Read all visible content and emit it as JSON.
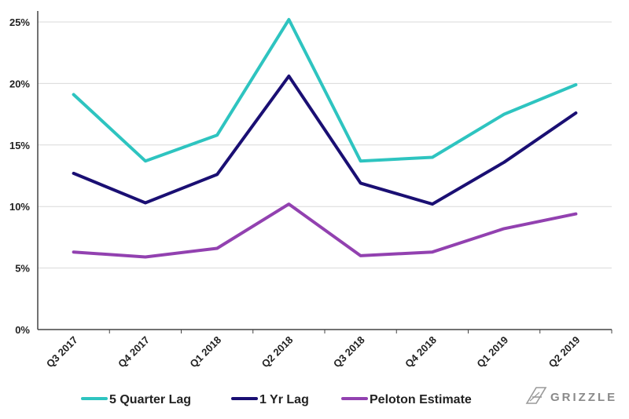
{
  "chart_data": {
    "type": "line",
    "categories": [
      "Q3 2017",
      "Q4 2017",
      "Q1 2018",
      "Q2 2018",
      "Q3 2018",
      "Q4 2018",
      "Q1 2019",
      "Q2 2019"
    ],
    "series": [
      {
        "name": "5 Quarter Lag",
        "color": "#2ec4c0",
        "values": [
          19.1,
          13.7,
          15.8,
          25.2,
          13.7,
          14.0,
          17.5,
          19.9
        ]
      },
      {
        "name": "1 Yr Lag",
        "color": "#1a0f73",
        "values": [
          12.7,
          10.3,
          12.6,
          20.6,
          11.9,
          10.2,
          13.6,
          17.6
        ]
      },
      {
        "name": "Peloton Estimate",
        "color": "#9241b0",
        "values": [
          6.3,
          5.9,
          6.6,
          10.2,
          6.0,
          6.3,
          8.2,
          9.4
        ]
      }
    ],
    "ylim": [
      0,
      25
    ],
    "yticks": [
      "0%",
      "5%",
      "10%",
      "15%",
      "20%",
      "25%"
    ],
    "ytick_values": [
      0,
      5,
      10,
      15,
      20,
      25
    ],
    "grid": true,
    "legend_position": "bottom-left"
  },
  "logo": {
    "text": "GRIZZLE",
    "icon": "grizzle-logo-icon"
  }
}
